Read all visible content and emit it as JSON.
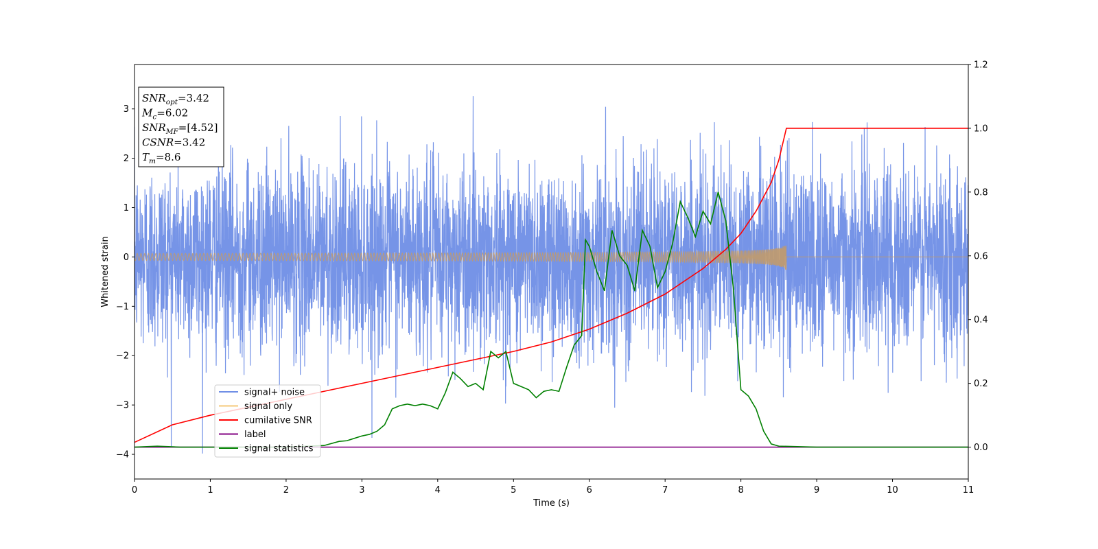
{
  "chart_data": {
    "type": "line",
    "xlabel": "Time (s)",
    "ylabel": "Whitened strain",
    "xlim": [
      0,
      11
    ],
    "ylim_left": [
      -4.5,
      3.9
    ],
    "ylim_right": [
      -0.1,
      1.2
    ],
    "x_ticks": [
      0,
      1,
      2,
      3,
      4,
      5,
      6,
      7,
      8,
      9,
      10,
      11
    ],
    "y_ticks_left": [
      -4,
      -3,
      -2,
      -1,
      0,
      1,
      2,
      3
    ],
    "y_ticks_left_labels": [
      "−4",
      "−3",
      "−2",
      "−1",
      "0",
      "1",
      "2",
      "3"
    ],
    "y_ticks_right": [
      0.0,
      0.2,
      0.4,
      0.6,
      0.8,
      1.0,
      1.2
    ],
    "y_ticks_right_labels": [
      "0.0",
      "0.2",
      "0.4",
      "0.6",
      "0.8",
      "1.0",
      "1.2"
    ],
    "grid": false,
    "legend_position": "bottom-left",
    "annotations": [
      {
        "var": "SNR",
        "sub": "opt",
        "value": "=3.42"
      },
      {
        "var": "M",
        "sub": "c",
        "value": "=6.02"
      },
      {
        "var": "SNR",
        "sub": "MF",
        "value": "=[4.52]"
      },
      {
        "var": "CSNR",
        "sub": "",
        "value": "=3.42"
      },
      {
        "var": "T",
        "sub": "m",
        "value": "=8.6"
      }
    ],
    "series": [
      {
        "name": "signal+ noise",
        "color": "#6f8ee6",
        "axis": "left",
        "kind": "noise",
        "envelope": {
          "std": 0.95,
          "max": 3.5,
          "min": -4.15
        },
        "x_range": [
          0,
          11
        ]
      },
      {
        "name": "signal only",
        "color": "#f5c97a",
        "axis": "left",
        "kind": "chirp",
        "end_time": 8.6,
        "peak_amplitude": 0.28
      },
      {
        "name": "cumilative SNR",
        "color": "#ff0000",
        "axis": "right",
        "x": [
          0,
          0.5,
          1,
          1.5,
          2,
          2.5,
          3,
          3.5,
          4,
          4.5,
          5,
          5.5,
          6,
          6.5,
          7,
          7.5,
          7.8,
          8.0,
          8.2,
          8.4,
          8.5,
          8.6,
          11
        ],
        "values": [
          0.015,
          0.07,
          0.1,
          0.125,
          0.15,
          0.175,
          0.2,
          0.225,
          0.25,
          0.275,
          0.3,
          0.33,
          0.37,
          0.42,
          0.48,
          0.56,
          0.62,
          0.67,
          0.74,
          0.83,
          0.9,
          1.0,
          1.0
        ]
      },
      {
        "name": "label",
        "color": "#800080",
        "axis": "right",
        "x": [
          0,
          11
        ],
        "values": [
          0.0,
          0.0
        ]
      },
      {
        "name": "signal statistics",
        "color": "#008000",
        "axis": "right",
        "x": [
          0,
          0.3,
          0.6,
          1.0,
          2.0,
          2.5,
          2.7,
          2.8,
          3.0,
          3.1,
          3.2,
          3.3,
          3.4,
          3.5,
          3.6,
          3.7,
          3.8,
          3.9,
          4.0,
          4.1,
          4.2,
          4.3,
          4.4,
          4.5,
          4.6,
          4.7,
          4.8,
          4.9,
          5.0,
          5.1,
          5.2,
          5.3,
          5.4,
          5.5,
          5.6,
          5.7,
          5.8,
          5.9,
          5.95,
          6.0,
          6.1,
          6.2,
          6.3,
          6.4,
          6.5,
          6.6,
          6.7,
          6.8,
          6.9,
          7.0,
          7.1,
          7.2,
          7.3,
          7.4,
          7.5,
          7.6,
          7.7,
          7.8,
          7.9,
          8.0,
          8.1,
          8.2,
          8.3,
          8.4,
          8.5,
          9.0,
          11.0
        ],
        "values": [
          0.0,
          0.003,
          0.0,
          0.0,
          0.0,
          0.005,
          0.018,
          0.02,
          0.035,
          0.04,
          0.05,
          0.07,
          0.12,
          0.13,
          0.135,
          0.13,
          0.135,
          0.13,
          0.12,
          0.17,
          0.235,
          0.215,
          0.19,
          0.2,
          0.18,
          0.3,
          0.28,
          0.3,
          0.2,
          0.19,
          0.18,
          0.155,
          0.175,
          0.18,
          0.175,
          0.25,
          0.32,
          0.35,
          0.65,
          0.63,
          0.55,
          0.49,
          0.68,
          0.6,
          0.57,
          0.49,
          0.68,
          0.63,
          0.5,
          0.55,
          0.64,
          0.77,
          0.72,
          0.66,
          0.74,
          0.7,
          0.8,
          0.71,
          0.5,
          0.18,
          0.16,
          0.12,
          0.05,
          0.01,
          0.003,
          0.0,
          0.0
        ]
      }
    ]
  }
}
